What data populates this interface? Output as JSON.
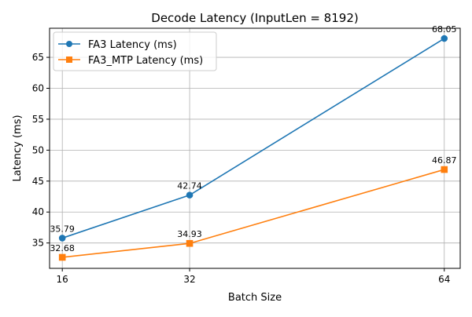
{
  "chart_data": {
    "type": "line",
    "title": "Decode Latency (InputLen = 8192)",
    "xlabel": "Batch Size",
    "ylabel": "Latency (ms)",
    "x": [
      16,
      32,
      64
    ],
    "x_ticks": [
      "16",
      "32",
      "64"
    ],
    "xlim": [
      14.4,
      66.0
    ],
    "ylim": [
      30.9,
      69.7
    ],
    "y_ticks": [
      35,
      40,
      45,
      50,
      55,
      60,
      65
    ],
    "y_tick_labels": [
      "35",
      "40",
      "45",
      "50",
      "55",
      "60",
      "65"
    ],
    "grid": true,
    "legend_position": "top-left",
    "series": [
      {
        "name": "FA3 Latency (ms)",
        "values": [
          35.79,
          42.74,
          68.05
        ],
        "labels": [
          "35.79",
          "42.74",
          "68.05"
        ],
        "color": "#1f77b4",
        "marker": "circle"
      },
      {
        "name": "FA3_MTP Latency (ms)",
        "values": [
          32.68,
          34.93,
          46.87
        ],
        "labels": [
          "32.68",
          "34.93",
          "46.87"
        ],
        "color": "#ff7f0e",
        "marker": "square"
      }
    ]
  }
}
